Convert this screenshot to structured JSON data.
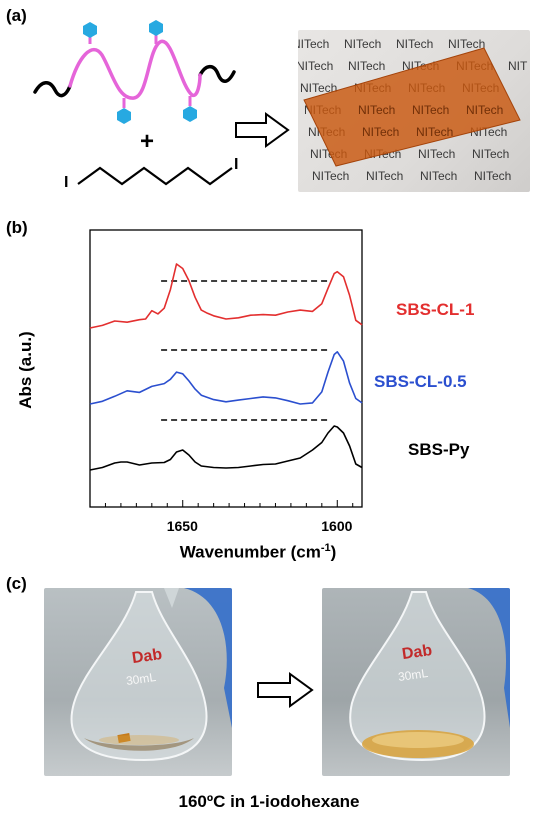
{
  "panels": {
    "a": {
      "label": "(a)",
      "plus": "+",
      "reagent_atom": "I",
      "film_text": "NITech"
    },
    "b": {
      "label": "(b)"
    },
    "c": {
      "label": "(c)",
      "flask_logo": "Dab",
      "flask_volume": "30mL",
      "caption": "160ºC in 1-iodohexane"
    }
  },
  "chart_data": {
    "type": "line",
    "xlabel": "Wavenumber (cm",
    "xlabel_sup": "-1",
    "xlabel_close": ")",
    "ylabel": "Abs (a.u.)",
    "x_ticks": [
      1650,
      1600
    ],
    "x_tick_labels": [
      "1650",
      "1600"
    ],
    "xlim": [
      1680,
      1592
    ],
    "x_reversed": true,
    "y_ticks_shown": false,
    "grid": false,
    "series": [
      {
        "name": "SBS-CL-1",
        "color": "#e32f2f",
        "x": [
          1680,
          1676,
          1672,
          1668,
          1664,
          1662,
          1660,
          1658,
          1656,
          1654,
          1652,
          1650,
          1648,
          1646,
          1644,
          1642,
          1640,
          1636,
          1632,
          1628,
          1624,
          1620,
          1616,
          1612,
          1608,
          1605,
          1603,
          1601,
          1600,
          1598,
          1596,
          1594,
          1592
        ],
        "y": [
          0.0,
          0.04,
          0.11,
          0.09,
          0.13,
          0.14,
          0.27,
          0.22,
          0.31,
          0.6,
          1.0,
          0.93,
          0.74,
          0.48,
          0.28,
          0.23,
          0.19,
          0.14,
          0.16,
          0.2,
          0.21,
          0.2,
          0.25,
          0.28,
          0.26,
          0.38,
          0.62,
          0.85,
          0.88,
          0.8,
          0.51,
          0.12,
          0.05
        ]
      },
      {
        "name": "SBS-CL-0.5",
        "color": "#2b4fcf",
        "x": [
          1680,
          1676,
          1672,
          1668,
          1664,
          1660,
          1656,
          1654,
          1652,
          1650,
          1648,
          1646,
          1644,
          1640,
          1636,
          1632,
          1628,
          1624,
          1620,
          1616,
          1612,
          1608,
          1605,
          1603,
          1601,
          1600,
          1598,
          1596,
          1594,
          1592
        ],
        "y": [
          0.0,
          0.05,
          0.14,
          0.24,
          0.21,
          0.32,
          0.37,
          0.45,
          0.58,
          0.55,
          0.42,
          0.27,
          0.16,
          0.08,
          0.04,
          0.07,
          0.1,
          0.13,
          0.11,
          0.06,
          0.0,
          0.02,
          0.22,
          0.58,
          0.9,
          0.95,
          0.78,
          0.38,
          0.1,
          0.02
        ]
      },
      {
        "name": "SBS-Py",
        "color": "#000000",
        "x": [
          1680,
          1676,
          1672,
          1670,
          1668,
          1664,
          1660,
          1656,
          1654,
          1652,
          1650,
          1648,
          1646,
          1644,
          1640,
          1636,
          1632,
          1628,
          1624,
          1620,
          1616,
          1612,
          1608,
          1605,
          1603,
          1601,
          1600,
          1598,
          1596,
          1594,
          1592
        ],
        "y": [
          0.0,
          0.05,
          0.14,
          0.16,
          0.16,
          0.1,
          0.14,
          0.15,
          0.21,
          0.36,
          0.4,
          0.3,
          0.16,
          0.08,
          0.05,
          0.04,
          0.05,
          0.08,
          0.11,
          0.12,
          0.18,
          0.24,
          0.4,
          0.55,
          0.74,
          0.88,
          0.86,
          0.74,
          0.48,
          0.12,
          0.05
        ]
      }
    ],
    "guide_lines": [
      {
        "x": [
          1657,
          1603
        ],
        "style": "dashed",
        "color": "#000000"
      },
      {
        "x": [
          1657,
          1603
        ],
        "style": "dashed",
        "color": "#000000"
      },
      {
        "x": [
          1657,
          1603
        ],
        "style": "dashed",
        "color": "#000000"
      }
    ]
  }
}
